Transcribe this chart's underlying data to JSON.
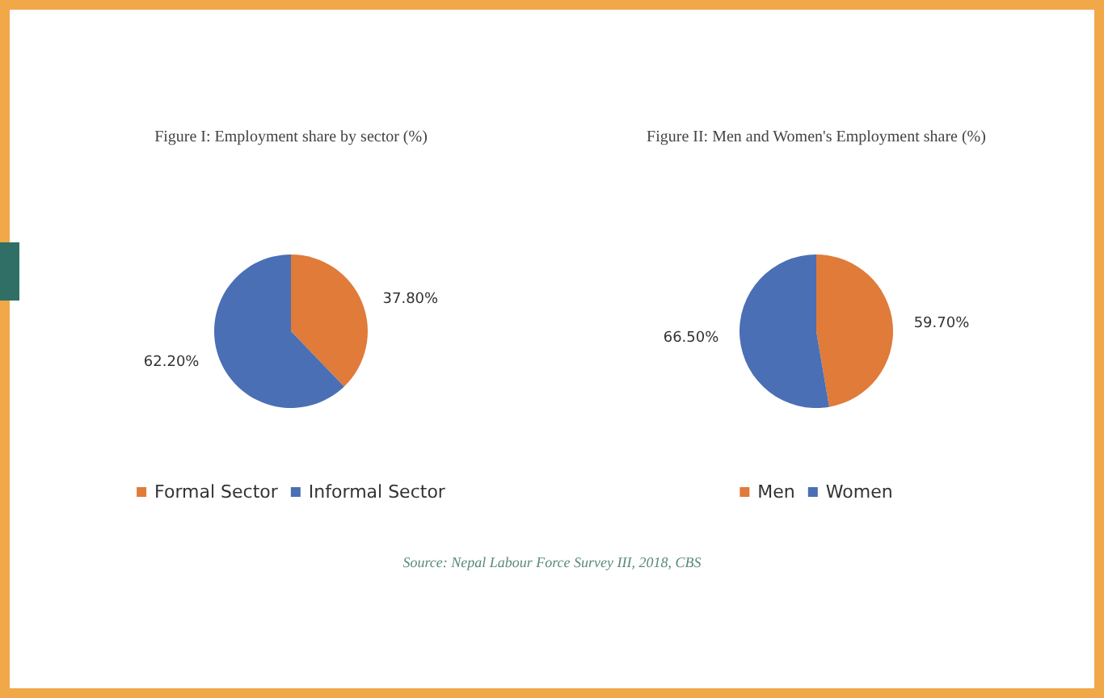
{
  "chart_data": [
    {
      "type": "pie",
      "title": "Figure I: Employment share by sector (%)",
      "categories": [
        "Formal Sector",
        "Informal Sector"
      ],
      "values": [
        37.8,
        62.2
      ],
      "colors": [
        "#e07b39",
        "#4a6fb5"
      ],
      "value_labels": [
        "37.80%",
        "62.20%"
      ],
      "legend": "bottom"
    },
    {
      "type": "pie",
      "title": "Figure II: Men and Women's Employment share (%)",
      "categories": [
        "Men",
        "Women"
      ],
      "values": [
        59.7,
        66.5
      ],
      "colors": [
        "#e07b39",
        "#4a6fb5"
      ],
      "value_labels": [
        "59.70%",
        "66.50%"
      ],
      "legend": "bottom",
      "annotations": [
        "Source: Nepal Labour Force Survey III, 2018, CBS"
      ]
    }
  ]
}
